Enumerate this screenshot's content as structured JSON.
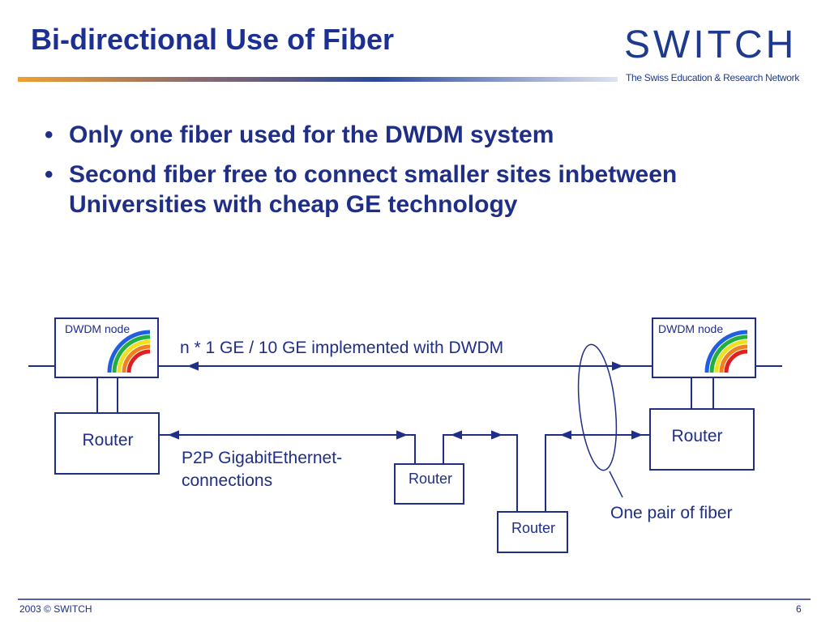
{
  "header": {
    "title": "Bi-directional Use of Fiber",
    "logo": "SWITCH",
    "tagline": "The Swiss Education & Research Network"
  },
  "bullets": [
    "Only one fiber used for the DWDM system",
    "Second fiber free to connect smaller sites inbetween Universities with cheap GE technology"
  ],
  "diagram": {
    "nodes": [
      {
        "label": "DWDM node"
      },
      {
        "label": "DWDM node"
      },
      {
        "label": "Router"
      },
      {
        "label": "Router"
      },
      {
        "label": "Router"
      },
      {
        "label": "Router"
      }
    ],
    "dwdm_link_label": "n * 1 GE / 10 GE implemented with DWDM",
    "p2p_label": [
      "P2P GigabitEthernet-",
      "connections"
    ],
    "fiber_label": "One pair of fiber"
  },
  "footer": {
    "left": "2003 © SWITCH",
    "page": "6"
  }
}
